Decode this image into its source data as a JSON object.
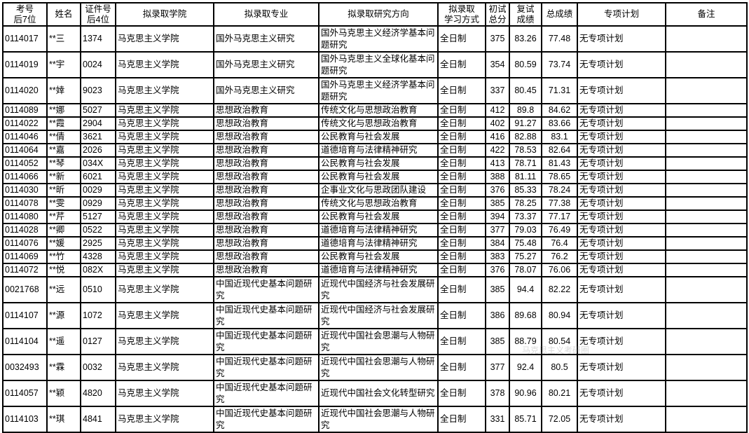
{
  "headers": [
    "考号后7位",
    "姓名",
    "证件号后4位",
    "拟录取学院",
    "拟录取专业",
    "拟录取研究方向",
    "拟录取学习方式",
    "初试总分",
    "复试成绩",
    "总成绩",
    "专项计划",
    "备注"
  ],
  "header_lines": [
    [
      "考号",
      "后7位"
    ],
    [
      "姓名"
    ],
    [
      "证件号",
      "后4位"
    ],
    [
      "拟录取学院"
    ],
    [
      "拟录取专业"
    ],
    [
      "拟录取研究方向"
    ],
    [
      "拟录取",
      "学习方式"
    ],
    [
      "初试",
      "总分"
    ],
    [
      "复试",
      "成绩"
    ],
    [
      "总成绩"
    ],
    [
      "专项计划"
    ],
    [
      "备注"
    ]
  ],
  "rows": [
    {
      "exam_no": "0114017",
      "name": "**三",
      "id4": "1374",
      "college": "马克思主义学院",
      "major": "国外马克思主义研究",
      "direction": "国外马克思主义经济学基本问题研究",
      "mode": "全日制",
      "initial": "375",
      "retest": "83.26",
      "total": "77.48",
      "plan": "无专项计划",
      "note": ""
    },
    {
      "exam_no": "0114019",
      "name": "**宇",
      "id4": "0024",
      "college": "马克思主义学院",
      "major": "国外马克思主义研究",
      "direction": "国外马克思主义全球化基本问题研究",
      "mode": "全日制",
      "initial": "354",
      "retest": "80.59",
      "total": "73.74",
      "plan": "无专项计划",
      "note": ""
    },
    {
      "exam_no": "0114020",
      "name": "**婞",
      "id4": "9023",
      "college": "马克思主义学院",
      "major": "国外马克思主义研究",
      "direction": "国外马克思主义经济学基本问题研究",
      "mode": "全日制",
      "initial": "337",
      "retest": "80.45",
      "total": "71.31",
      "plan": "无专项计划",
      "note": ""
    },
    {
      "exam_no": "0114089",
      "name": "**娜",
      "id4": "5027",
      "college": "马克思主义学院",
      "major": "思想政治教育",
      "direction": "传统文化与思想政治教育",
      "mode": "全日制",
      "initial": "412",
      "retest": "89.8",
      "total": "84.62",
      "plan": "无专项计划",
      "note": ""
    },
    {
      "exam_no": "0114022",
      "name": "**霞",
      "id4": "2904",
      "college": "马克思主义学院",
      "major": "思想政治教育",
      "direction": "传统文化与思想政治教育",
      "mode": "全日制",
      "initial": "402",
      "retest": "91.27",
      "total": "83.66",
      "plan": "无专项计划",
      "note": ""
    },
    {
      "exam_no": "0114046",
      "name": "**倩",
      "id4": "3621",
      "college": "马克思主义学院",
      "major": "思想政治教育",
      "direction": "公民教育与社会发展",
      "mode": "全日制",
      "initial": "416",
      "retest": "82.88",
      "total": "83.1",
      "plan": "无专项计划",
      "note": ""
    },
    {
      "exam_no": "0114064",
      "name": "**嘉",
      "id4": "2026",
      "college": "马克思主义学院",
      "major": "思想政治教育",
      "direction": "道德培育与法律精神研究",
      "mode": "全日制",
      "initial": "422",
      "retest": "78.53",
      "total": "82.64",
      "plan": "无专项计划",
      "note": ""
    },
    {
      "exam_no": "0114052",
      "name": "**琴",
      "id4": "034X",
      "college": "马克思主义学院",
      "major": "思想政治教育",
      "direction": "公民教育与社会发展",
      "mode": "全日制",
      "initial": "413",
      "retest": "78.71",
      "total": "81.43",
      "plan": "无专项计划",
      "note": ""
    },
    {
      "exam_no": "0114066",
      "name": "**新",
      "id4": "6021",
      "college": "马克思主义学院",
      "major": "思想政治教育",
      "direction": "公民教育与社会发展",
      "mode": "全日制",
      "initial": "388",
      "retest": "81.11",
      "total": "78.65",
      "plan": "无专项计划",
      "note": ""
    },
    {
      "exam_no": "0114030",
      "name": "**昕",
      "id4": "0029",
      "college": "马克思主义学院",
      "major": "思想政治教育",
      "direction": "企事业文化与思政团队建设",
      "mode": "全日制",
      "initial": "376",
      "retest": "85.33",
      "total": "78.24",
      "plan": "无专项计划",
      "note": ""
    },
    {
      "exam_no": "0114078",
      "name": "**雯",
      "id4": "0929",
      "college": "马克思主义学院",
      "major": "思想政治教育",
      "direction": "传统文化与思想政治教育",
      "mode": "全日制",
      "initial": "385",
      "retest": "78.25",
      "total": "77.38",
      "plan": "无专项计划",
      "note": ""
    },
    {
      "exam_no": "0114080",
      "name": "**芹",
      "id4": "5127",
      "college": "马克思主义学院",
      "major": "思想政治教育",
      "direction": "公民教育与社会发展",
      "mode": "全日制",
      "initial": "394",
      "retest": "73.37",
      "total": "77.17",
      "plan": "无专项计划",
      "note": ""
    },
    {
      "exam_no": "0114028",
      "name": "**卿",
      "id4": "0522",
      "college": "马克思主义学院",
      "major": "思想政治教育",
      "direction": "道德培育与法律精神研究",
      "mode": "全日制",
      "initial": "377",
      "retest": "79.03",
      "total": "76.49",
      "plan": "无专项计划",
      "note": ""
    },
    {
      "exam_no": "0114076",
      "name": "**媛",
      "id4": "2925",
      "college": "马克思主义学院",
      "major": "思想政治教育",
      "direction": "道德培育与法律精神研究",
      "mode": "全日制",
      "initial": "384",
      "retest": "75.48",
      "total": "76.4",
      "plan": "无专项计划",
      "note": ""
    },
    {
      "exam_no": "0114069",
      "name": "**竹",
      "id4": "4328",
      "college": "马克思主义学院",
      "major": "思想政治教育",
      "direction": "公民教育与社会发展",
      "mode": "全日制",
      "initial": "383",
      "retest": "75.27",
      "total": "76.2",
      "plan": "无专项计划",
      "note": ""
    },
    {
      "exam_no": "0114072",
      "name": "**悦",
      "id4": "082X",
      "college": "马克思主义学院",
      "major": "思想政治教育",
      "direction": "道德培育与法律精神研究",
      "mode": "全日制",
      "initial": "376",
      "retest": "78.07",
      "total": "76.06",
      "plan": "无专项计划",
      "note": ""
    },
    {
      "exam_no": "0021768",
      "name": "**远",
      "id4": "0510",
      "college": "马克思主义学院",
      "major": "中国近现代史基本问题研究",
      "direction": "近现代中国经济与社会发展研究",
      "mode": "全日制",
      "initial": "385",
      "retest": "94.4",
      "total": "82.22",
      "plan": "无专项计划",
      "note": ""
    },
    {
      "exam_no": "0114107",
      "name": "**源",
      "id4": "1072",
      "college": "马克思主义学院",
      "major": "中国近现代史基本问题研究",
      "direction": "近现代中国经济与社会发展研究",
      "mode": "全日制",
      "initial": "386",
      "retest": "89.68",
      "total": "80.94",
      "plan": "无专项计划",
      "note": ""
    },
    {
      "exam_no": "0114104",
      "name": "**遥",
      "id4": "0127",
      "college": "马克思主义学院",
      "major": "中国近现代史基本问题研究",
      "direction": "近现代中国社会思潮与人物研究",
      "mode": "全日制",
      "initial": "385",
      "retest": "88.79",
      "total": "80.54",
      "plan": "无专项计划",
      "note": ""
    },
    {
      "exam_no": "0032493",
      "name": "**霖",
      "id4": "0032",
      "college": "马克思主义学院",
      "major": "中国近现代史基本问题研究",
      "direction": "近现代中国社会思潮与人物研究",
      "mode": "全日制",
      "initial": "377",
      "retest": "92.4",
      "total": "80.5",
      "plan": "无专项计划",
      "note": ""
    },
    {
      "exam_no": "0114057",
      "name": "**颖",
      "id4": "4820",
      "college": "马克思主义学院",
      "major": "中国近现代史基本问题研究",
      "direction": "近现代中国社会文化转型研究",
      "mode": "全日制",
      "initial": "378",
      "retest": "90.96",
      "total": "80.21",
      "plan": "无专项计划",
      "note": ""
    },
    {
      "exam_no": "0114103",
      "name": "**琪",
      "id4": "4841",
      "college": "马克思主义学院",
      "major": "中国近现代史基本问题研究",
      "direction": "近现代中国社会思潮与人物研究",
      "mode": "全日制",
      "initial": "331",
      "retest": "85.71",
      "total": "72.05",
      "plan": "无专项计划",
      "note": ""
    }
  ],
  "watermark": "马克思主义考研圈"
}
